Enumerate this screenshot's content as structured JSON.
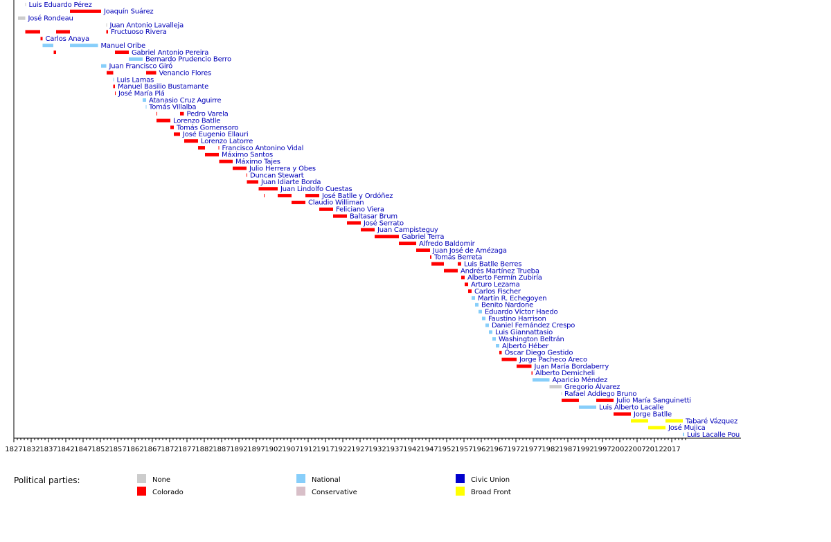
{
  "chart_data": {
    "type": "timeline",
    "xlim": [
      1827,
      2021
    ],
    "x_ticks": [
      "1827",
      "1832",
      "1837",
      "1842",
      "1847",
      "1852",
      "1857",
      "1862",
      "1867",
      "1872",
      "1877",
      "1882",
      "1887",
      "1892",
      "1897",
      "1902",
      "1907",
      "1912",
      "1917",
      "1922",
      "1927",
      "1932",
      "1937",
      "1942",
      "1947",
      "1952",
      "1957",
      "1962",
      "1967",
      "1972",
      "1977",
      "1982",
      "1987",
      "1992",
      "1997",
      "2002",
      "2007",
      "2012",
      "2017"
    ],
    "legend_title": "Political parties:",
    "parties": [
      {
        "key": "none",
        "name": "None",
        "color": "#cccccc"
      },
      {
        "key": "colorado",
        "name": "Colorado",
        "color": "#ff0000"
      },
      {
        "key": "national",
        "name": "National",
        "color": "#87cefa"
      },
      {
        "key": "conservative",
        "name": "Conservative",
        "color": "#d8bfc8"
      },
      {
        "key": "civic",
        "name": "Civic Union",
        "color": "#0000cd"
      },
      {
        "key": "broad",
        "name": "Broad Front",
        "color": "#ffff00"
      }
    ],
    "presidents": [
      {
        "name": "Luis Eduardo Pérez",
        "terms": [
          {
            "start": 1830.3,
            "end": 1830.5,
            "party": "none"
          }
        ]
      },
      {
        "name": "Joaquín Suárez",
        "terms": [
          {
            "start": 1843.2,
            "end": 1852.2,
            "party": "colorado"
          }
        ]
      },
      {
        "name": "José Rondeau",
        "terms": [
          {
            "start": 1828.2,
            "end": 1830.3,
            "party": "none"
          }
        ]
      },
      {
        "name": "Juan Antonio Lavalleja",
        "terms": [
          {
            "start": 1853.7,
            "end": 1853.9,
            "party": "none"
          }
        ]
      },
      {
        "name": "Fructuoso Rivera",
        "terms": [
          {
            "start": 1830.3,
            "end": 1834.6,
            "party": "colorado"
          },
          {
            "start": 1839.2,
            "end": 1843.2,
            "party": "colorado"
          },
          {
            "start": 1853.7,
            "end": 1854.2,
            "party": "colorado"
          }
        ]
      },
      {
        "name": "Carlos Anaya",
        "terms": [
          {
            "start": 1834.7,
            "end": 1835.3,
            "party": "colorado"
          }
        ]
      },
      {
        "name": "Manuel Oribe",
        "terms": [
          {
            "start": 1835.3,
            "end": 1838.4,
            "party": "national"
          },
          {
            "start": 1843.2,
            "end": 1851.3,
            "party": "national"
          }
        ]
      },
      {
        "name": "Gabriel Antonio Pereira",
        "terms": [
          {
            "start": 1838.5,
            "end": 1839.2,
            "party": "colorado"
          },
          {
            "start": 1856.2,
            "end": 1860.2,
            "party": "colorado"
          }
        ]
      },
      {
        "name": "Bernardo Prudencio Berro",
        "terms": [
          {
            "start": 1860.2,
            "end": 1864.2,
            "party": "national"
          }
        ]
      },
      {
        "name": "Juan Francisco Giró",
        "terms": [
          {
            "start": 1852.2,
            "end": 1853.7,
            "party": "national"
          }
        ]
      },
      {
        "name": "Venancio Flores",
        "terms": [
          {
            "start": 1853.8,
            "end": 1855.7,
            "party": "colorado"
          },
          {
            "start": 1865.2,
            "end": 1868.1,
            "party": "colorado"
          }
        ]
      },
      {
        "name": "Luis Lamas",
        "terms": [
          {
            "start": 1855.7,
            "end": 1855.9,
            "party": "national"
          }
        ]
      },
      {
        "name": "Manuel Basilio Bustamante",
        "terms": [
          {
            "start": 1855.7,
            "end": 1856.2,
            "party": "colorado"
          }
        ]
      },
      {
        "name": "José María Plá",
        "terms": [
          {
            "start": 1856.2,
            "end": 1856.4,
            "party": "colorado"
          }
        ]
      },
      {
        "name": "Atanasio Cruz Aguirre",
        "terms": [
          {
            "start": 1864.2,
            "end": 1865.2,
            "party": "national"
          }
        ]
      },
      {
        "name": "Tomás Villalba",
        "terms": [
          {
            "start": 1865.1,
            "end": 1865.2,
            "party": "national"
          }
        ]
      },
      {
        "name": "Pedro Varela",
        "terms": [
          {
            "start": 1868.2,
            "end": 1868.3,
            "party": "colorado"
          },
          {
            "start": 1875.0,
            "end": 1876.1,
            "party": "colorado"
          }
        ]
      },
      {
        "name": "Lorenzo Batlle",
        "terms": [
          {
            "start": 1868.2,
            "end": 1872.2,
            "party": "colorado"
          }
        ]
      },
      {
        "name": "Tomás Gomensoro",
        "terms": [
          {
            "start": 1872.2,
            "end": 1873.2,
            "party": "colorado"
          }
        ]
      },
      {
        "name": "José Eugenio Ellauri",
        "terms": [
          {
            "start": 1873.2,
            "end": 1875.0,
            "party": "colorado"
          }
        ]
      },
      {
        "name": "Lorenzo Latorre",
        "terms": [
          {
            "start": 1876.2,
            "end": 1880.2,
            "party": "colorado"
          }
        ]
      },
      {
        "name": "Francisco Antonino Vidal",
        "terms": [
          {
            "start": 1880.2,
            "end": 1882.2,
            "party": "colorado"
          },
          {
            "start": 1886.1,
            "end": 1886.3,
            "party": "colorado"
          }
        ]
      },
      {
        "name": "Máximo Santos",
        "terms": [
          {
            "start": 1882.2,
            "end": 1886.2,
            "party": "colorado"
          }
        ]
      },
      {
        "name": "Máximo Tajes",
        "terms": [
          {
            "start": 1886.3,
            "end": 1890.2,
            "party": "colorado"
          }
        ]
      },
      {
        "name": "Julio Herrera y Obes",
        "terms": [
          {
            "start": 1890.2,
            "end": 1894.2,
            "party": "colorado"
          }
        ]
      },
      {
        "name": "Duncan Stewart",
        "terms": [
          {
            "start": 1894.2,
            "end": 1894.4,
            "party": "colorado"
          }
        ]
      },
      {
        "name": "Juan Idiarte Borda",
        "terms": [
          {
            "start": 1894.3,
            "end": 1897.6,
            "party": "colorado"
          }
        ]
      },
      {
        "name": "Juan Lindolfo Cuestas",
        "terms": [
          {
            "start": 1897.7,
            "end": 1903.2,
            "party": "colorado"
          }
        ]
      },
      {
        "name": "José Batlle y Ordóñez",
        "terms": [
          {
            "start": 1899.2,
            "end": 1899.3,
            "party": "colorado"
          },
          {
            "start": 1903.2,
            "end": 1907.2,
            "party": "colorado"
          },
          {
            "start": 1911.2,
            "end": 1915.2,
            "party": "colorado"
          }
        ]
      },
      {
        "name": "Claudio Williman",
        "terms": [
          {
            "start": 1907.2,
            "end": 1911.2,
            "party": "colorado"
          }
        ]
      },
      {
        "name": "Feliciano Viera",
        "terms": [
          {
            "start": 1915.2,
            "end": 1919.2,
            "party": "colorado"
          }
        ]
      },
      {
        "name": "Baltasar Brum",
        "terms": [
          {
            "start": 1919.2,
            "end": 1923.2,
            "party": "colorado"
          }
        ]
      },
      {
        "name": "José Serrato",
        "terms": [
          {
            "start": 1923.2,
            "end": 1927.2,
            "party": "colorado"
          }
        ]
      },
      {
        "name": "Juan Campisteguy",
        "terms": [
          {
            "start": 1927.2,
            "end": 1931.2,
            "party": "colorado"
          }
        ]
      },
      {
        "name": "Gabriel Terra",
        "terms": [
          {
            "start": 1931.2,
            "end": 1938.2,
            "party": "colorado"
          }
        ]
      },
      {
        "name": "Alfredo Baldomir",
        "terms": [
          {
            "start": 1938.2,
            "end": 1943.2,
            "party": "colorado"
          }
        ]
      },
      {
        "name": "Juan José de Amézaga",
        "terms": [
          {
            "start": 1943.2,
            "end": 1947.2,
            "party": "colorado"
          }
        ]
      },
      {
        "name": "Tomás Berreta",
        "terms": [
          {
            "start": 1947.2,
            "end": 1947.6,
            "party": "colorado"
          }
        ]
      },
      {
        "name": "Luis Batlle Berres",
        "terms": [
          {
            "start": 1947.6,
            "end": 1951.2,
            "party": "colorado"
          },
          {
            "start": 1955.2,
            "end": 1956.2,
            "party": "colorado"
          }
        ]
      },
      {
        "name": "Andrés Martínez Trueba",
        "terms": [
          {
            "start": 1951.2,
            "end": 1955.2,
            "party": "colorado"
          }
        ]
      },
      {
        "name": "Alberto Fermín Zubiría",
        "terms": [
          {
            "start": 1956.2,
            "end": 1957.2,
            "party": "colorado"
          }
        ]
      },
      {
        "name": "Arturo Lezama",
        "terms": [
          {
            "start": 1957.2,
            "end": 1958.2,
            "party": "colorado"
          }
        ]
      },
      {
        "name": "Carlos Fischer",
        "terms": [
          {
            "start": 1958.2,
            "end": 1959.2,
            "party": "colorado"
          }
        ]
      },
      {
        "name": "Martín R. Echegoyen",
        "terms": [
          {
            "start": 1959.2,
            "end": 1960.2,
            "party": "national"
          }
        ]
      },
      {
        "name": "Benito Nardone",
        "terms": [
          {
            "start": 1960.2,
            "end": 1961.2,
            "party": "national"
          }
        ]
      },
      {
        "name": "Eduardo Víctor Haedo",
        "terms": [
          {
            "start": 1961.2,
            "end": 1962.2,
            "party": "national"
          }
        ]
      },
      {
        "name": "Faustino Harrison",
        "terms": [
          {
            "start": 1962.2,
            "end": 1963.2,
            "party": "national"
          }
        ]
      },
      {
        "name": "Daniel Fernández Crespo",
        "terms": [
          {
            "start": 1963.2,
            "end": 1964.2,
            "party": "national"
          }
        ]
      },
      {
        "name": "Luis Giannattasio",
        "terms": [
          {
            "start": 1964.2,
            "end": 1965.2,
            "party": "national"
          }
        ]
      },
      {
        "name": "Washington Beltrán",
        "terms": [
          {
            "start": 1965.2,
            "end": 1966.2,
            "party": "national"
          }
        ]
      },
      {
        "name": "Alberto Héber",
        "terms": [
          {
            "start": 1966.2,
            "end": 1967.2,
            "party": "national"
          }
        ]
      },
      {
        "name": "Óscar Diego Gestido",
        "terms": [
          {
            "start": 1967.2,
            "end": 1967.9,
            "party": "colorado"
          }
        ]
      },
      {
        "name": "Jorge Pacheco Areco",
        "terms": [
          {
            "start": 1967.9,
            "end": 1972.2,
            "party": "colorado"
          }
        ]
      },
      {
        "name": "Juan María Bordaberry",
        "terms": [
          {
            "start": 1972.2,
            "end": 1976.5,
            "party": "colorado"
          }
        ]
      },
      {
        "name": "Alberto Demicheli",
        "terms": [
          {
            "start": 1976.5,
            "end": 1976.8,
            "party": "colorado"
          }
        ]
      },
      {
        "name": "Aparicio Méndez",
        "terms": [
          {
            "start": 1976.8,
            "end": 1981.7,
            "party": "national"
          }
        ]
      },
      {
        "name": "Gregorio Álvarez",
        "terms": [
          {
            "start": 1981.7,
            "end": 1985.2,
            "party": "none"
          }
        ]
      },
      {
        "name": "Rafael Addiego Bruno",
        "terms": [
          {
            "start": 1985.1,
            "end": 1985.2,
            "party": "none"
          }
        ]
      },
      {
        "name": "Julio María Sanguinetti",
        "terms": [
          {
            "start": 1985.2,
            "end": 1990.2,
            "party": "colorado"
          },
          {
            "start": 1995.2,
            "end": 2000.2,
            "party": "colorado"
          }
        ]
      },
      {
        "name": "Luis Alberto Lacalle",
        "terms": [
          {
            "start": 1990.2,
            "end": 1995.2,
            "party": "national"
          }
        ]
      },
      {
        "name": "Jorge Batlle",
        "terms": [
          {
            "start": 2000.2,
            "end": 2005.2,
            "party": "colorado"
          }
        ]
      },
      {
        "name": "Tabaré Vázquez",
        "terms": [
          {
            "start": 2005.2,
            "end": 2010.2,
            "party": "broad"
          },
          {
            "start": 2015.2,
            "end": 2020.2,
            "party": "broad"
          }
        ]
      },
      {
        "name": "José Mujica",
        "terms": [
          {
            "start": 2010.2,
            "end": 2015.2,
            "party": "broad"
          }
        ]
      },
      {
        "name": "Luis Lacalle Pou",
        "terms": [
          {
            "start": 2020.2,
            "end": 2020.6,
            "party": "national"
          }
        ]
      }
    ]
  }
}
